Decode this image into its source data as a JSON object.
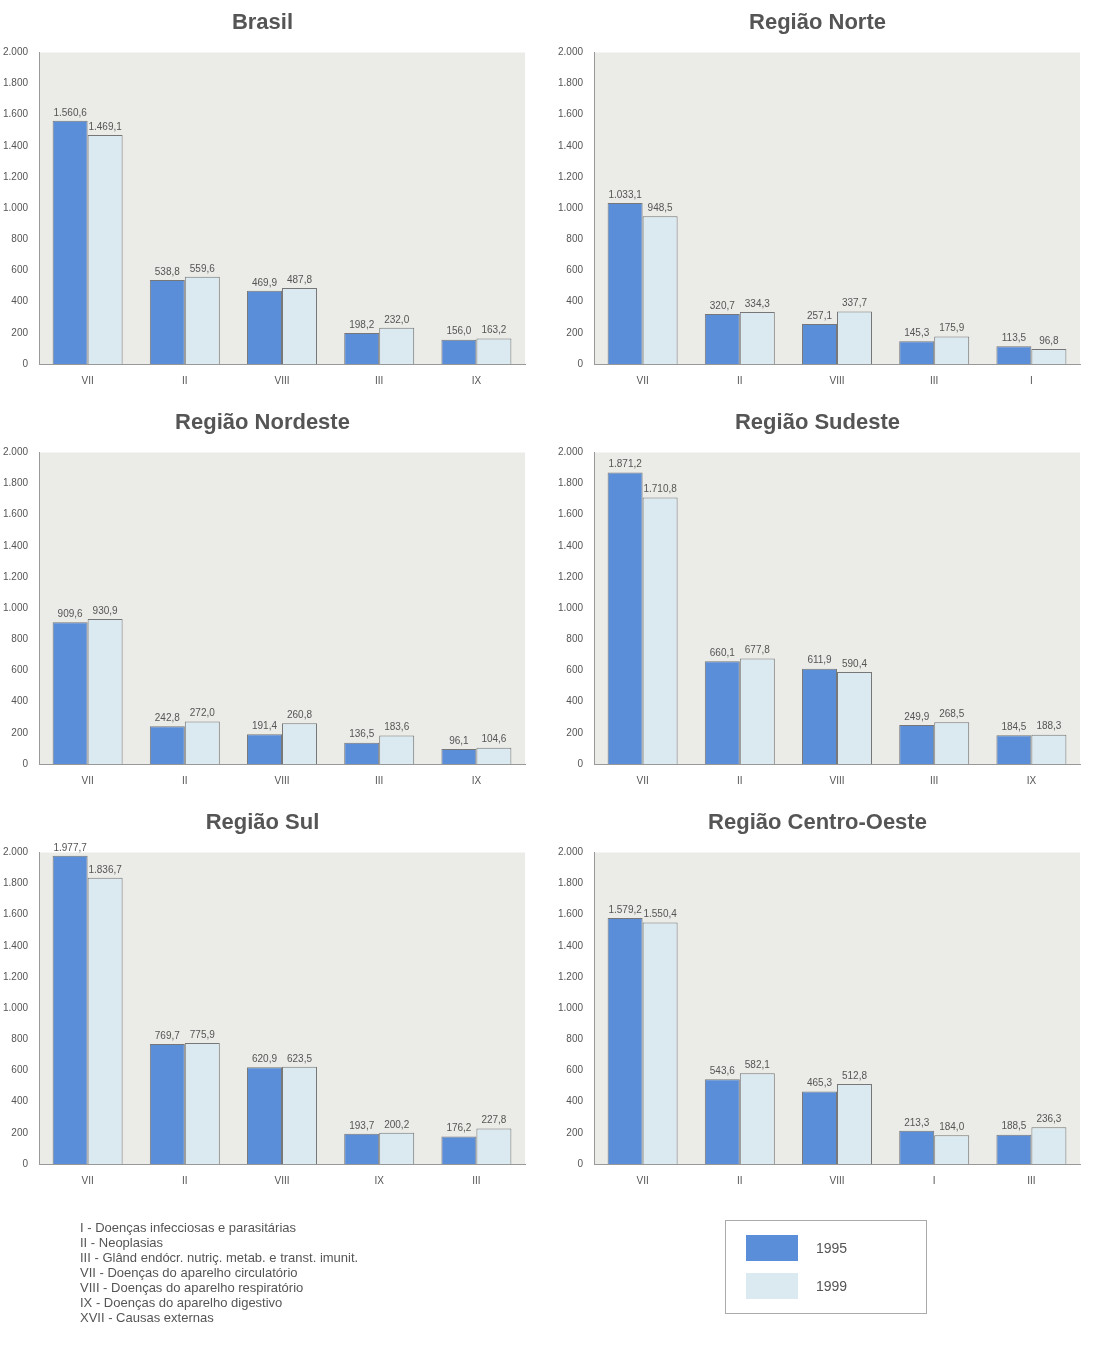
{
  "chart_data": [
    {
      "type": "bar",
      "title": "Brasil",
      "categories": [
        "VII",
        "II",
        "VIII",
        "III",
        "IX"
      ],
      "ylim": [
        0,
        2000
      ],
      "yticks": [
        0,
        200,
        400,
        600,
        800,
        {
          "value": 1000,
          "label": "1.000"
        },
        {
          "value": 1200,
          "label": "1.200"
        },
        {
          "value": 1400,
          "label": "1.400"
        },
        {
          "value": 1600,
          "label": "1.600"
        },
        {
          "value": 1800,
          "label": "1.800"
        },
        {
          "value": 2000,
          "label": "2.000"
        }
      ],
      "series": [
        {
          "color": "#5b8ed8",
          "values": [
            1560.6,
            538.8,
            469.9,
            198.2,
            156.0
          ],
          "value_labels": [
            "1.560,6",
            "538,8",
            "469,9",
            "198,2",
            "156,0"
          ]
        },
        {
          "color": "#dbeaf0",
          "values": [
            1469.1,
            559.6,
            487.8,
            232.0,
            163.2
          ],
          "value_labels": [
            "1.469,1",
            "559,6",
            "487,8",
            "232,0",
            "163,2"
          ]
        }
      ]
    },
    {
      "type": "bar",
      "title": "Região Norte",
      "categories": [
        "VII",
        "II",
        "VIII",
        "III",
        "I"
      ],
      "ylim": [
        0,
        2000
      ],
      "yticks": [
        0,
        200,
        400,
        600,
        800,
        {
          "value": 1000,
          "label": "1.000"
        },
        {
          "value": 1200,
          "label": "1.200"
        },
        {
          "value": 1400,
          "label": "1.400"
        },
        {
          "value": 1600,
          "label": "1.600"
        },
        {
          "value": 1800,
          "label": "1.800"
        },
        {
          "value": 2000,
          "label": "2.000"
        }
      ],
      "series": [
        {
          "color": "#5b8ed8",
          "values": [
            1033.1,
            320.7,
            257.1,
            145.3,
            113.5
          ],
          "value_labels": [
            "1.033,1",
            "320,7",
            "257,1",
            "145,3",
            "113,5"
          ]
        },
        {
          "color": "#dbeaf0",
          "values": [
            948.5,
            334.3,
            337.7,
            175.9,
            96.8
          ],
          "value_labels": [
            "948,5",
            "334,3",
            "337,7",
            "175,9",
            "96,8"
          ]
        }
      ]
    },
    {
      "type": "bar",
      "title": "Região Nordeste",
      "categories": [
        "VII",
        "II",
        "VIII",
        "III",
        "IX"
      ],
      "ylim": [
        0,
        2000
      ],
      "yticks": [
        0,
        200,
        400,
        600,
        800,
        {
          "value": 1000,
          "label": "1.000"
        },
        {
          "value": 1200,
          "label": "1.200"
        },
        {
          "value": 1400,
          "label": "1.400"
        },
        {
          "value": 1600,
          "label": "1.600"
        },
        {
          "value": 1800,
          "label": "1.800"
        },
        {
          "value": 2000,
          "label": "2.000"
        }
      ],
      "series": [
        {
          "color": "#5b8ed8",
          "values": [
            909.6,
            242.8,
            191.4,
            136.5,
            96.1
          ],
          "value_labels": [
            "909,6",
            "242,8",
            "191,4",
            "136,5",
            "96,1"
          ]
        },
        {
          "color": "#dbeaf0",
          "values": [
            930.9,
            272.0,
            260.8,
            183.6,
            104.6
          ],
          "value_labels": [
            "930,9",
            "272,0",
            "260,8",
            "183,6",
            "104,6"
          ]
        }
      ]
    },
    {
      "type": "bar",
      "title": "Região Sudeste",
      "categories": [
        "VII",
        "II",
        "VIII",
        "III",
        "IX"
      ],
      "ylim": [
        0,
        2000
      ],
      "yticks": [
        0,
        200,
        400,
        600,
        800,
        {
          "value": 1000,
          "label": "1.000"
        },
        {
          "value": 1200,
          "label": "1.200"
        },
        {
          "value": 1400,
          "label": "1.400"
        },
        {
          "value": 1600,
          "label": "1.600"
        },
        {
          "value": 1800,
          "label": "1.800"
        },
        {
          "value": 2000,
          "label": "2.000"
        }
      ],
      "series": [
        {
          "color": "#5b8ed8",
          "values": [
            1871.2,
            660.1,
            611.9,
            249.9,
            184.5
          ],
          "value_labels": [
            "1.871,2",
            "660,1",
            "611,9",
            "249,9",
            "184,5"
          ]
        },
        {
          "color": "#dbeaf0",
          "values": [
            1710.8,
            677.8,
            590.4,
            268.5,
            188.3
          ],
          "value_labels": [
            "1.710,8",
            "677,8",
            "590,4",
            "268,5",
            "188,3"
          ]
        }
      ]
    },
    {
      "type": "bar",
      "title": "Região Sul",
      "categories": [
        "VII",
        "II",
        "VIII",
        "IX",
        "III"
      ],
      "ylim": [
        0,
        2000
      ],
      "yticks": [
        0,
        200,
        400,
        600,
        800,
        {
          "value": 1000,
          "label": "1.000"
        },
        {
          "value": 1200,
          "label": "1.200"
        },
        {
          "value": 1400,
          "label": "1.400"
        },
        {
          "value": 1600,
          "label": "1.600"
        },
        {
          "value": 1800,
          "label": "1.800"
        },
        {
          "value": 2000,
          "label": "2.000"
        }
      ],
      "series": [
        {
          "color": "#5b8ed8",
          "values": [
            1977.7,
            769.7,
            620.9,
            193.7,
            176.2
          ],
          "value_labels": [
            "1.977,7",
            "769,7",
            "620,9",
            "193,7",
            "176,2"
          ]
        },
        {
          "color": "#dbeaf0",
          "values": [
            1836.7,
            775.9,
            623.5,
            200.2,
            227.8
          ],
          "value_labels": [
            "1.836,7",
            "775,9",
            "623,5",
            "200,2",
            "227,8"
          ]
        }
      ],
      "annotations": [
        "I - Doenças infecciosas e parasitárias",
        "II - Neoplasias",
        "III - Glând endócr. nutriç. metab. e transt. imunit.",
        "VII - Doenças do aparelho circulatório",
        "VIII - Doenças do aparelho respiratório",
        "IX - Doenças do aparelho digestivo",
        "XVII - Causas externas"
      ]
    },
    {
      "type": "bar",
      "title": "Região Centro-Oeste",
      "categories": [
        "VII",
        "II",
        "VIII",
        "I",
        "III"
      ],
      "ylim": [
        0,
        2000
      ],
      "yticks": [
        0,
        200,
        400,
        600,
        800,
        {
          "value": 1000,
          "label": "1.000"
        },
        {
          "value": 1200,
          "label": "1.200"
        },
        {
          "value": 1400,
          "label": "1.400"
        },
        {
          "value": 1600,
          "label": "1.600"
        },
        {
          "value": 1800,
          "label": "1.800"
        },
        {
          "value": 2000,
          "label": "2.000"
        }
      ],
      "legend": "bottom",
      "series": [
        {
          "name": "1995",
          "color": "#5b8ed8",
          "values": [
            1579.2,
            543.6,
            465.3,
            213.3,
            188.5
          ],
          "value_labels": [
            "1.579,2",
            "543,6",
            "465,3",
            "213,3",
            "188,5"
          ]
        },
        {
          "name": "1999",
          "color": "#dbeaf0",
          "values": [
            1550.4,
            582.1,
            512.8,
            184.0,
            236.3
          ],
          "value_labels": [
            "1.550,4",
            "582,1",
            "512,8",
            "184,0",
            "236,3"
          ]
        }
      ]
    }
  ]
}
